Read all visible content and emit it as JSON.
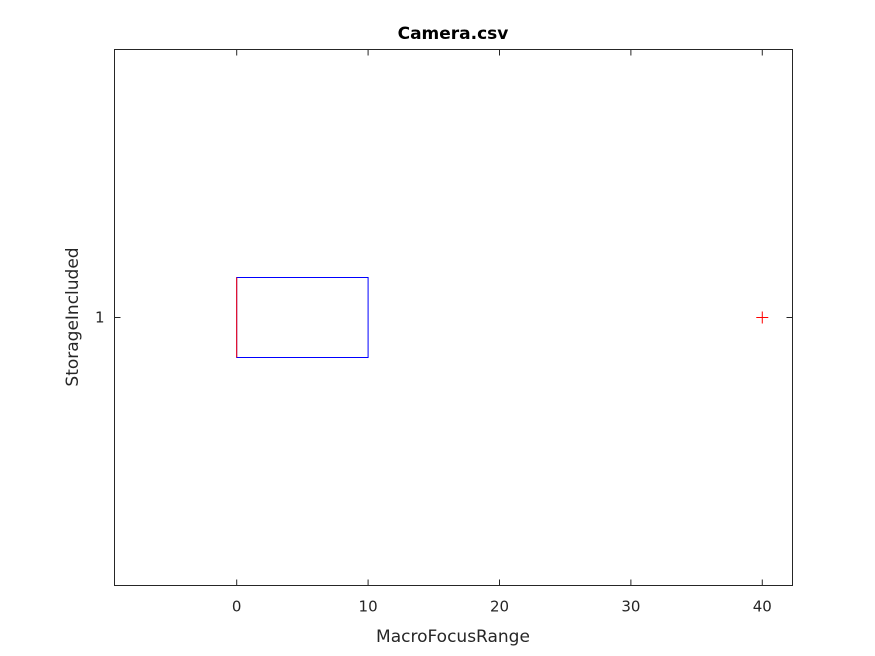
{
  "chart_data": {
    "type": "boxplot",
    "orientation": "horizontal",
    "title": "Camera.csv",
    "xlabel": "MacroFocusRange",
    "ylabel": "StorageIncluded",
    "xlim": [
      -9.3,
      42.3
    ],
    "xticks": [
      0,
      10,
      20,
      30,
      40
    ],
    "yticks": [
      "1"
    ],
    "grid": false,
    "series": [
      {
        "category": "1",
        "q1": 0,
        "median": 0,
        "q3": 10,
        "whisker_low": 0,
        "whisker_high": 10,
        "outliers": [
          40
        ]
      }
    ],
    "colors": {
      "box": "#0000ff",
      "median": "#ff0000",
      "outlier": "#ff0000",
      "axes": "#262626"
    }
  }
}
